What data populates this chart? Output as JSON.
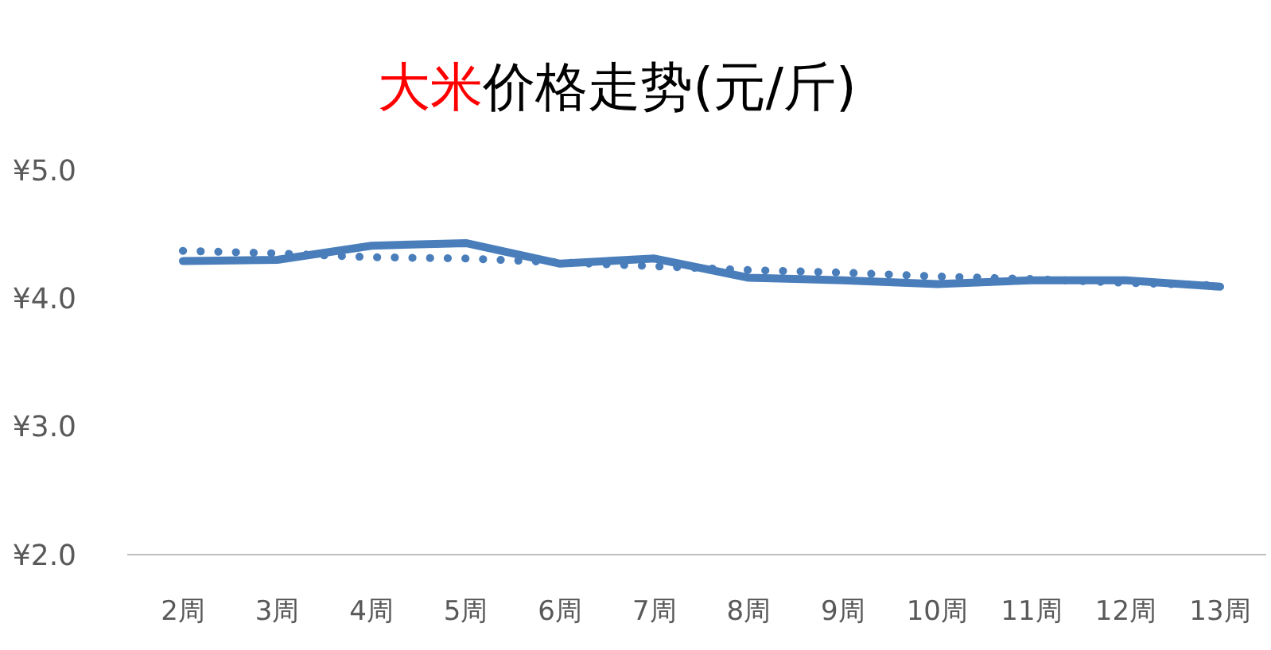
{
  "chart_data": {
    "type": "line",
    "title": "大米价格走势(元/斤)",
    "categories": [
      "2周",
      "3周",
      "4周",
      "5周",
      "6周",
      "7周",
      "8周",
      "9周",
      "10周",
      "11周",
      "12周",
      "13周"
    ],
    "series": [
      {
        "color": "#4a7ebb",
        "line_style": "solid",
        "values": [
          4.29,
          4.3,
          4.41,
          4.43,
          4.27,
          4.31,
          4.16,
          4.14,
          4.11,
          4.14,
          4.14,
          4.09
        ]
      },
      {
        "type": "line",
        "color": "#4a7ebb",
        "line_style": "dotted",
        "values": [
          4.37,
          4.35,
          4.32,
          4.31,
          4.28,
          4.25,
          4.22,
          4.2,
          4.17,
          4.15,
          4.12,
          4.1
        ]
      }
    ],
    "ylim": [
      2,
      5
    ],
    "yticks": [
      {
        "value": 2,
        "label": "¥2.0"
      },
      {
        "value": 3,
        "label": "¥3.0"
      },
      {
        "value": 4,
        "label": "¥4.0"
      },
      {
        "value": 5,
        "label": "¥5.0"
      }
    ],
    "grid": false
  }
}
